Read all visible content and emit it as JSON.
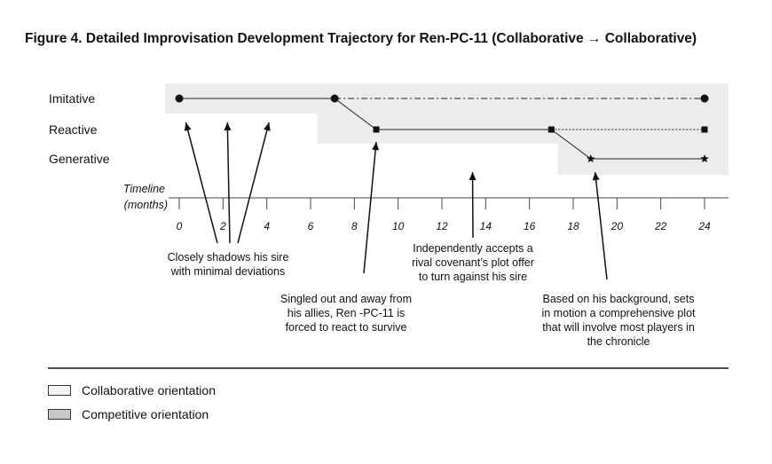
{
  "title": "Figure 4.  Detailed Improvisation Development Trajectory for Ren-PC-11 (Collaborative → Collaborative)",
  "chart_data": {
    "type": "line",
    "y_levels": [
      "Imitative",
      "Reactive",
      "Generative"
    ],
    "timeline_label": [
      "Timeline",
      "(months)"
    ],
    "x_ticks": [
      "0",
      "2",
      "4",
      "6",
      "8",
      "10",
      "12",
      "14",
      "16",
      "18",
      "20",
      "22",
      "24"
    ],
    "xlim": [
      0,
      24
    ],
    "shading_color": "#ececec",
    "shaded_regions": [
      {
        "level": "Imitative",
        "x_start": 0,
        "x_end": 6.3
      },
      {
        "level": "Imitative",
        "x_start": 6.3,
        "x_end": 24
      },
      {
        "level": "Reactive",
        "x_start": 6.3,
        "x_end": 24
      },
      {
        "level": "Generative",
        "x_start": 17.3,
        "x_end": 24
      }
    ],
    "trajectory": [
      {
        "x": 0,
        "level": "Imitative",
        "marker": "circle"
      },
      {
        "x": 7.1,
        "level": "Imitative",
        "marker": "circle"
      },
      {
        "x": 9,
        "level": "Reactive",
        "marker": "square"
      },
      {
        "x": 17,
        "level": "Reactive",
        "marker": "square"
      },
      {
        "x": 18.8,
        "level": "Generative",
        "marker": "star"
      },
      {
        "x": 24,
        "level": "Generative",
        "marker": "star"
      }
    ],
    "continuations": [
      {
        "level": "Imitative",
        "from": 7.1,
        "to": 24,
        "style": "dash-dot",
        "end_marker": "circle"
      },
      {
        "level": "Reactive",
        "from": 17,
        "to": 24,
        "style": "dotted",
        "end_marker": "square"
      }
    ],
    "annotations": [
      {
        "lines": [
          "Closely shadows his sire",
          "with minimal deviations"
        ],
        "arrows": [
          {
            "x": 0.3,
            "level": "Imitative"
          },
          {
            "x": 2.2,
            "level": "Imitative"
          },
          {
            "x": 4.1,
            "level": "Imitative"
          }
        ]
      },
      {
        "lines": [
          "Singled out and away from",
          "his allies, Ren -PC-11 is",
          "forced to react to survive"
        ],
        "arrows": [
          {
            "x": 9,
            "level": "Reactive"
          }
        ]
      },
      {
        "lines": [
          "Independently accepts a",
          "rival covenant’s plot offer",
          "to turn against his sire"
        ],
        "arrows": [
          {
            "x": 13.4,
            "level": "Generative"
          }
        ]
      },
      {
        "lines": [
          "Based on his background, sets",
          "in motion a comprehensive plot",
          "that will involve most players in",
          "the chronicle"
        ],
        "arrows": [
          {
            "x": 19,
            "level": "Generative"
          }
        ]
      }
    ]
  },
  "legend": [
    {
      "label": "Collaborative orientation",
      "color": "#f4f4f4"
    },
    {
      "label": "Competitive orientation",
      "color": "#c8c8c8"
    }
  ]
}
